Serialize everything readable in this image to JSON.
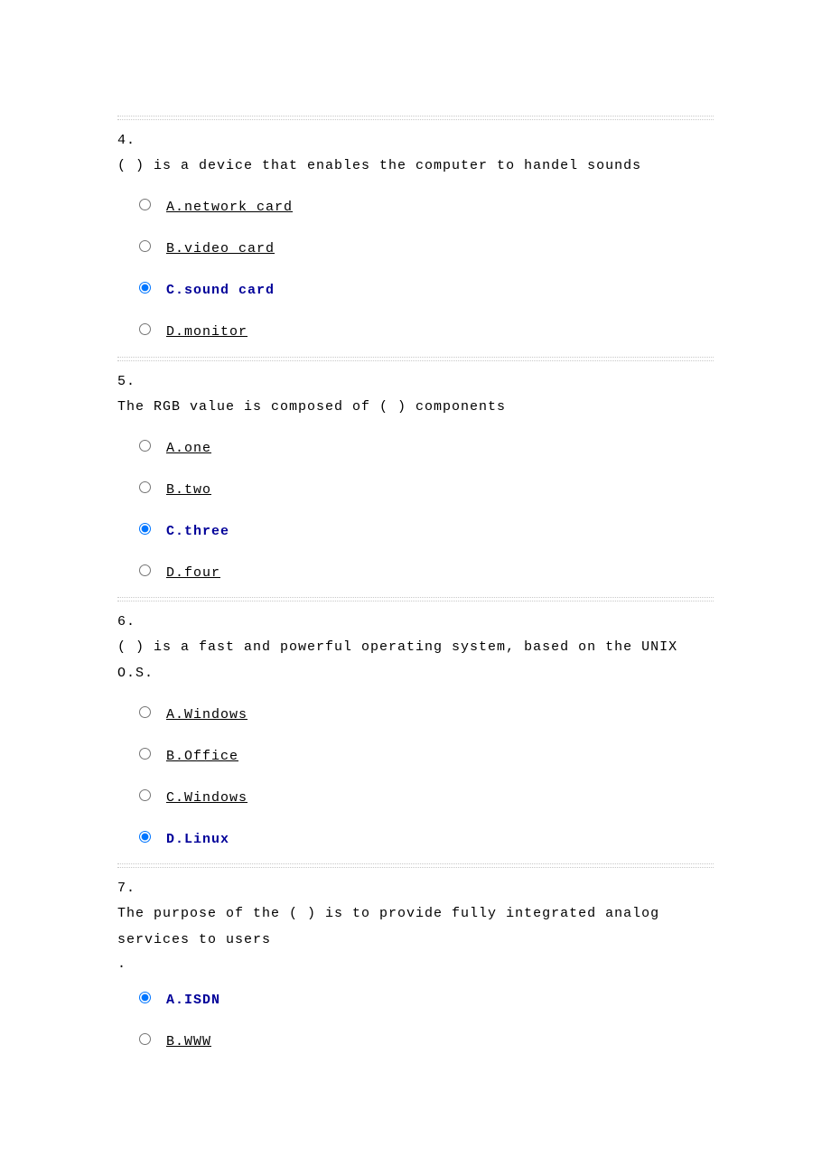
{
  "questions": [
    {
      "number": "4.",
      "text": "(   ) is a device that enables the computer to handel sounds",
      "trailing": "",
      "options": [
        {
          "label": "A.network card",
          "selected": false
        },
        {
          "label": "B.video card",
          "selected": false
        },
        {
          "label": "C.sound card",
          "selected": true
        },
        {
          "label": "D.monitor",
          "selected": false
        }
      ]
    },
    {
      "number": "5.",
      "text": "The RGB value is composed of (  ) components",
      "trailing": "",
      "options": [
        {
          "label": "A.one",
          "selected": false
        },
        {
          "label": "B.two",
          "selected": false
        },
        {
          "label": "C.three",
          "selected": true
        },
        {
          "label": "D.four",
          "selected": false
        }
      ]
    },
    {
      "number": "6.",
      "text": "(   ) is a fast and powerful operating system, based on the UNIX O.S.",
      "trailing": "",
      "options": [
        {
          "label": "A.Windows",
          "selected": false
        },
        {
          "label": "B.Office",
          "selected": false
        },
        {
          "label": "C.Windows",
          "selected": false
        },
        {
          "label": "D.Linux",
          "selected": true
        }
      ]
    },
    {
      "number": "7.",
      "text": "The purpose of the (  ) is to provide fully integrated analog services to users",
      "trailing": ".",
      "options": [
        {
          "label": "A.ISDN",
          "selected": true
        },
        {
          "label": "B.WWW",
          "selected": false
        }
      ]
    }
  ]
}
